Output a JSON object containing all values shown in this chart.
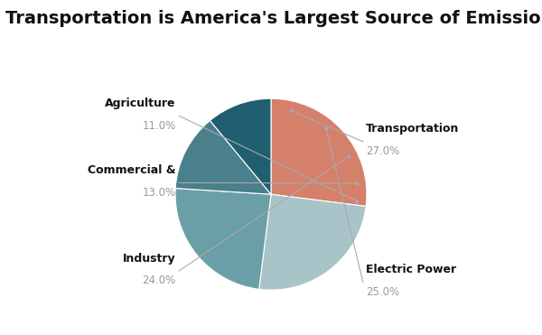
{
  "title": "Transportation is America's Largest Source of Emissions",
  "slices": [
    {
      "label": "Transportation",
      "value": 27.0,
      "color": "#D4806A"
    },
    {
      "label": "Electric Power",
      "value": 25.0,
      "color": "#A8C4C8"
    },
    {
      "label": "Industry",
      "value": 24.0,
      "color": "#6B9FA8"
    },
    {
      "label": "Commercial &",
      "value": 13.0,
      "color": "#4A7F8C"
    },
    {
      "label": "Agriculture",
      "value": 11.0,
      "color": "#1F5F70"
    }
  ],
  "background_color": "#FFFFFF",
  "title_fontsize": 14,
  "label_fontsize": 9,
  "pct_fontsize": 8.5,
  "label_color": "#111111",
  "pct_color": "#999999",
  "line_color": "#AAAAAA"
}
